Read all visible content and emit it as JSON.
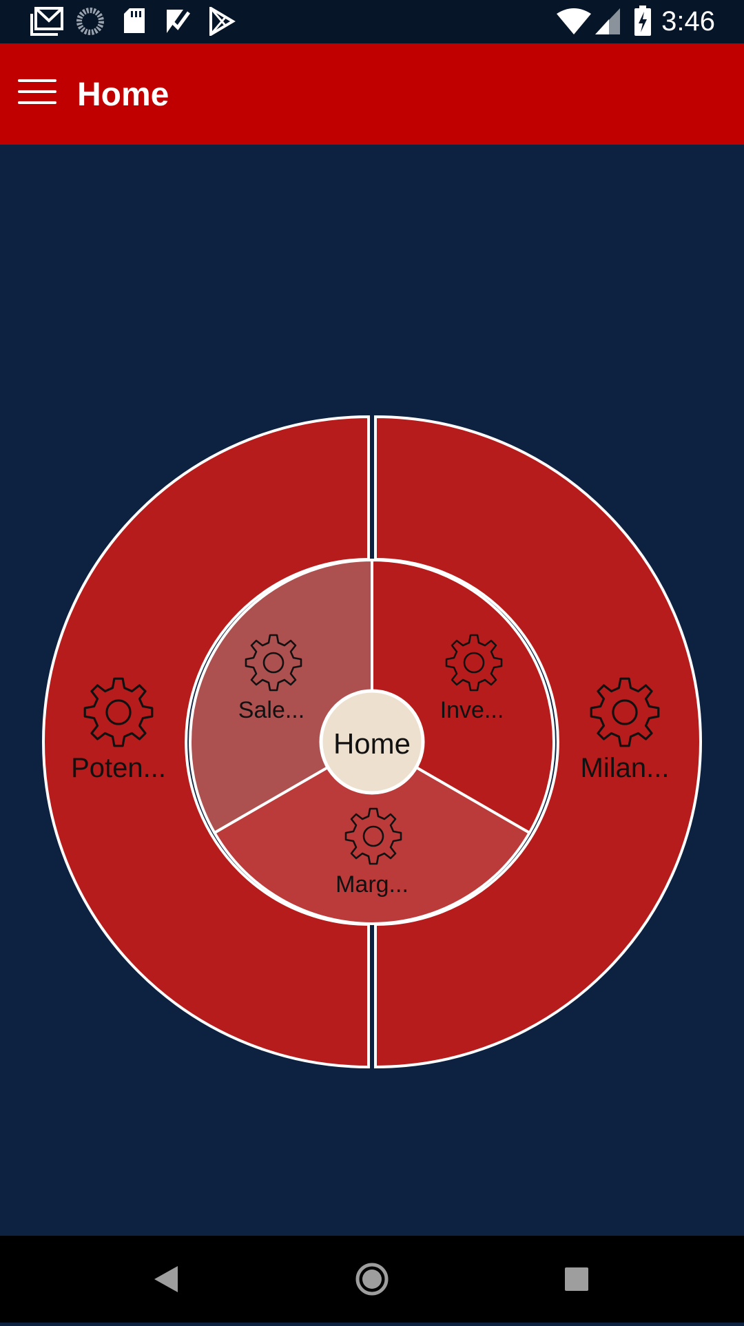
{
  "status_bar": {
    "time": "3:46",
    "left_icons": [
      "gmail-icon",
      "loading-icon",
      "sd-card-icon",
      "tasks-check-icon",
      "play-store-icon"
    ],
    "right_icons": [
      "wifi-icon",
      "cell-signal-icon",
      "battery-charging-icon"
    ]
  },
  "app_bar": {
    "title": "Home",
    "background": "#c00000"
  },
  "radial_menu": {
    "center": {
      "label": "Home",
      "color": "#ede0cf"
    },
    "outer_segments": [
      {
        "label": "Poten...",
        "icon": "gear-icon",
        "color": "#b71c1c"
      },
      {
        "label": "Milan...",
        "icon": "gear-icon",
        "color": "#b71c1c"
      }
    ],
    "inner_segments": [
      {
        "label": "Sale...",
        "icon": "gear-icon",
        "color": "#ad5050"
      },
      {
        "label": "Inve...",
        "icon": "gear-icon",
        "color": "#b71c1c"
      },
      {
        "label": "Marg...",
        "icon": "gear-icon",
        "color": "#bb3a3a"
      }
    ]
  },
  "nav_bar": {
    "buttons": [
      "back-icon",
      "home-icon",
      "recents-icon"
    ]
  }
}
